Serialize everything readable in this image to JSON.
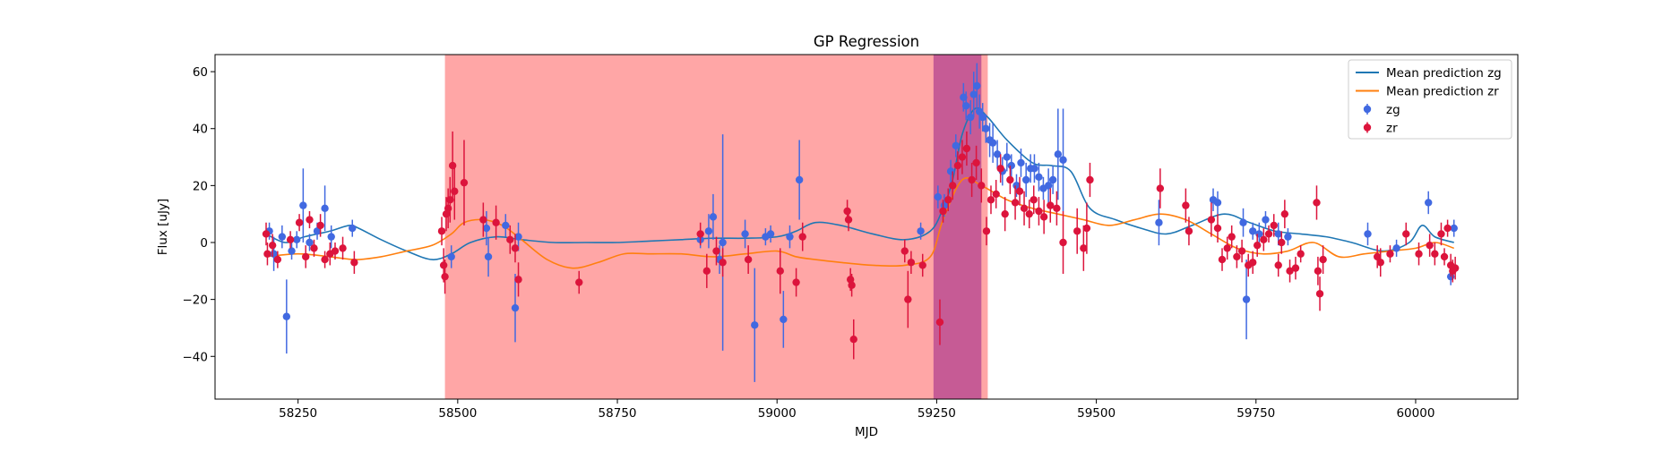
{
  "chart_data": {
    "type": "scatter",
    "title": "GP Regression",
    "xlabel": "MJD",
    "ylabel": "Flux [uJy]",
    "xlim": [
      58120,
      60160
    ],
    "ylim": [
      -55,
      66
    ],
    "xticks": [
      58250,
      58500,
      58750,
      59000,
      59250,
      59500,
      59750,
      60000
    ],
    "yticks": [
      -40,
      -20,
      0,
      20,
      40,
      60
    ],
    "grid": false,
    "legend_position": "top-right",
    "legend": [
      "Mean prediction zg",
      "Mean prediction zr",
      "zg",
      "zr"
    ],
    "colors": {
      "zg_points": "#4169e1",
      "zr_points": "#dc143c",
      "zg_line": "#1f77b4",
      "zr_line": "#ff7f0e",
      "span_red": "#ff0000",
      "span_purple": "#800080"
    },
    "spans": [
      {
        "x0": 58480,
        "x1": 59330,
        "color": "#ff0000",
        "alpha": 0.35
      },
      {
        "x0": 59245,
        "x1": 59320,
        "color": "#800080",
        "alpha": 0.45
      }
    ],
    "series": [
      {
        "name": "Mean prediction zg",
        "kind": "line",
        "color": "#1f77b4",
        "x": [
          58200,
          58230,
          58260,
          58300,
          58330,
          58345,
          58380,
          58420,
          58460,
          58490,
          58520,
          58560,
          58600,
          58650,
          58700,
          58750,
          58800,
          58850,
          58900,
          58950,
          59000,
          59030,
          59060,
          59100,
          59150,
          59200,
          59240,
          59260,
          59275,
          59290,
          59310,
          59330,
          59360,
          59400,
          59430,
          59460,
          59490,
          59530,
          59570,
          59610,
          59650,
          59700,
          59740,
          59780,
          59820,
          59860,
          59900,
          59950,
          59990,
          60010,
          60030,
          60060
        ],
        "y": [
          3,
          0,
          2,
          4,
          6,
          5,
          1,
          -3,
          -6,
          -4,
          0,
          2,
          1,
          0,
          0,
          0,
          0.5,
          1,
          1.5,
          1.5,
          2,
          4,
          7,
          6,
          3,
          1,
          4,
          12,
          22,
          38,
          47,
          44,
          36,
          28,
          27,
          25,
          12,
          8,
          5,
          3,
          6,
          10,
          7,
          4,
          3,
          2,
          0,
          -3,
          0,
          6,
          2,
          0
        ]
      },
      {
        "name": "Mean prediction zr",
        "kind": "line",
        "color": "#ff7f0e",
        "x": [
          58200,
          58250,
          58300,
          58340,
          58380,
          58420,
          58460,
          58490,
          58510,
          58540,
          58570,
          58600,
          58640,
          58680,
          58720,
          58760,
          58800,
          58850,
          58900,
          58950,
          59000,
          59030,
          59060,
          59100,
          59150,
          59200,
          59240,
          59260,
          59290,
          59320,
          59360,
          59400,
          59440,
          59480,
          59520,
          59560,
          59600,
          59640,
          59680,
          59720,
          59760,
          59800,
          59840,
          59880,
          59920,
          59960,
          60000,
          60030,
          60060
        ],
        "y": [
          -5,
          -4,
          -5,
          -6,
          -5,
          -3,
          -1,
          3,
          7,
          8,
          6,
          1,
          -6,
          -9,
          -7,
          -4,
          -4,
          -4,
          -5,
          -4,
          -3,
          -5,
          -6,
          -7,
          -8,
          -8,
          -5,
          8,
          22,
          20,
          15,
          12,
          10,
          8,
          6,
          8,
          10,
          8,
          3,
          -2,
          -4,
          -3,
          0,
          -5,
          -4,
          -3,
          -2,
          0,
          -2
        ]
      },
      {
        "name": "zg",
        "kind": "errorbar",
        "color": "#4169e1",
        "points": [
          [
            58205,
            4,
            3
          ],
          [
            58212,
            -4,
            6
          ],
          [
            58225,
            2,
            4
          ],
          [
            58232,
            -26,
            13
          ],
          [
            58240,
            -3,
            3
          ],
          [
            58248,
            1,
            3
          ],
          [
            58258,
            13,
            13
          ],
          [
            58268,
            0,
            3
          ],
          [
            58280,
            4,
            3
          ],
          [
            58292,
            12,
            8
          ],
          [
            58302,
            2,
            4
          ],
          [
            58335,
            5,
            3
          ],
          [
            58490,
            -5,
            4
          ],
          [
            58545,
            5,
            6
          ],
          [
            58548,
            -5,
            7
          ],
          [
            58575,
            6,
            4
          ],
          [
            58590,
            -23,
            12
          ],
          [
            58595,
            2,
            5
          ],
          [
            58880,
            1,
            3
          ],
          [
            58893,
            4,
            6
          ],
          [
            58900,
            9,
            8
          ],
          [
            58910,
            -6,
            5
          ],
          [
            58915,
            0,
            38
          ],
          [
            58950,
            3,
            5
          ],
          [
            58965,
            -29,
            20
          ],
          [
            58982,
            2,
            3
          ],
          [
            58990,
            3,
            3
          ],
          [
            59010,
            -27,
            10
          ],
          [
            59020,
            2,
            4
          ],
          [
            59035,
            22,
            14
          ],
          [
            59225,
            4,
            3
          ],
          [
            59252,
            16,
            4
          ],
          [
            59262,
            13,
            4
          ],
          [
            59272,
            25,
            4
          ],
          [
            59280,
            34,
            4
          ],
          [
            59292,
            51,
            5
          ],
          [
            59296,
            48,
            5
          ],
          [
            59303,
            44,
            6
          ],
          [
            59308,
            52,
            8
          ],
          [
            59313,
            55,
            8
          ],
          [
            59317,
            46,
            6
          ],
          [
            59322,
            44,
            5
          ],
          [
            59327,
            40,
            5
          ],
          [
            59333,
            36,
            6
          ],
          [
            59338,
            35,
            7
          ],
          [
            59345,
            31,
            5
          ],
          [
            59353,
            25,
            5
          ],
          [
            59360,
            30,
            5
          ],
          [
            59367,
            27,
            4
          ],
          [
            59375,
            20,
            4
          ],
          [
            59382,
            28,
            5
          ],
          [
            59390,
            22,
            6
          ],
          [
            59397,
            26,
            5
          ],
          [
            59403,
            26,
            5
          ],
          [
            59410,
            23,
            5
          ],
          [
            59417,
            19,
            4
          ],
          [
            59425,
            20,
            6
          ],
          [
            59432,
            22,
            5
          ],
          [
            59440,
            31,
            16
          ],
          [
            59448,
            29,
            18
          ],
          [
            59598,
            7,
            8
          ],
          [
            59683,
            15,
            4
          ],
          [
            59690,
            14,
            4
          ],
          [
            59730,
            7,
            5
          ],
          [
            59735,
            -20,
            14
          ],
          [
            59745,
            4,
            3
          ],
          [
            59755,
            3,
            4
          ],
          [
            59765,
            8,
            3
          ],
          [
            59785,
            3,
            4
          ],
          [
            59800,
            2,
            3
          ],
          [
            59925,
            3,
            4
          ],
          [
            59970,
            -2,
            3
          ],
          [
            60020,
            14,
            4
          ],
          [
            60055,
            -12,
            3
          ],
          [
            60060,
            5,
            3
          ]
        ]
      },
      {
        "name": "zr",
        "kind": "errorbar",
        "color": "#dc143c",
        "points": [
          [
            58200,
            3,
            4
          ],
          [
            58202,
            -4,
            4
          ],
          [
            58210,
            -1,
            4
          ],
          [
            58218,
            -6,
            3
          ],
          [
            58238,
            1,
            3
          ],
          [
            58252,
            7,
            3
          ],
          [
            58262,
            -5,
            4
          ],
          [
            58268,
            8,
            3
          ],
          [
            58275,
            -2,
            3
          ],
          [
            58285,
            6,
            4
          ],
          [
            58292,
            -6,
            3
          ],
          [
            58300,
            -4,
            4
          ],
          [
            58308,
            -3,
            3
          ],
          [
            58320,
            -2,
            4
          ],
          [
            58338,
            -7,
            4
          ],
          [
            58475,
            4,
            5
          ],
          [
            58478,
            -8,
            6
          ],
          [
            58480,
            -12,
            6
          ],
          [
            58482,
            10,
            6
          ],
          [
            58485,
            12,
            7
          ],
          [
            58488,
            15,
            8
          ],
          [
            58492,
            27,
            12
          ],
          [
            58495,
            18,
            10
          ],
          [
            58510,
            21,
            15
          ],
          [
            58540,
            8,
            6
          ],
          [
            58560,
            7,
            6
          ],
          [
            58582,
            1,
            5
          ],
          [
            58590,
            -2,
            5
          ],
          [
            58595,
            -13,
            6
          ],
          [
            58690,
            -14,
            4
          ],
          [
            58880,
            3,
            4
          ],
          [
            58890,
            -10,
            6
          ],
          [
            58905,
            -3,
            5
          ],
          [
            58915,
            -7,
            5
          ],
          [
            58955,
            -6,
            5
          ],
          [
            59005,
            -10,
            8
          ],
          [
            59030,
            -14,
            5
          ],
          [
            59040,
            2,
            5
          ],
          [
            59110,
            11,
            4
          ],
          [
            59112,
            8,
            4
          ],
          [
            59115,
            -13,
            4
          ],
          [
            59117,
            -15,
            4
          ],
          [
            59120,
            -34,
            7
          ],
          [
            59200,
            -3,
            4
          ],
          [
            59205,
            -20,
            10
          ],
          [
            59210,
            -7,
            4
          ],
          [
            59228,
            -8,
            4
          ],
          [
            59255,
            -28,
            8
          ],
          [
            59260,
            11,
            4
          ],
          [
            59268,
            15,
            4
          ],
          [
            59275,
            20,
            5
          ],
          [
            59283,
            27,
            5
          ],
          [
            59290,
            30,
            6
          ],
          [
            59297,
            33,
            6
          ],
          [
            59305,
            22,
            6
          ],
          [
            59312,
            28,
            6
          ],
          [
            59320,
            20,
            6
          ],
          [
            59328,
            4,
            5
          ],
          [
            59335,
            15,
            5
          ],
          [
            59343,
            17,
            5
          ],
          [
            59350,
            26,
            5
          ],
          [
            59357,
            10,
            6
          ],
          [
            59365,
            22,
            5
          ],
          [
            59373,
            14,
            6
          ],
          [
            59380,
            18,
            5
          ],
          [
            59387,
            12,
            6
          ],
          [
            59395,
            10,
            5
          ],
          [
            59402,
            15,
            5
          ],
          [
            59410,
            11,
            5
          ],
          [
            59418,
            9,
            6
          ],
          [
            59428,
            13,
            6
          ],
          [
            59438,
            12,
            6
          ],
          [
            59448,
            0,
            11
          ],
          [
            59470,
            4,
            8
          ],
          [
            59480,
            -2,
            8
          ],
          [
            59485,
            5,
            9
          ],
          [
            59490,
            22,
            6
          ],
          [
            59600,
            19,
            7
          ],
          [
            59640,
            13,
            6
          ],
          [
            59645,
            4,
            5
          ],
          [
            59680,
            8,
            6
          ],
          [
            59690,
            5,
            5
          ],
          [
            59697,
            -6,
            4
          ],
          [
            59705,
            -2,
            4
          ],
          [
            59712,
            2,
            4
          ],
          [
            59720,
            -5,
            4
          ],
          [
            59728,
            -3,
            4
          ],
          [
            59738,
            -8,
            4
          ],
          [
            59745,
            -7,
            4
          ],
          [
            59752,
            -1,
            4
          ],
          [
            59762,
            1,
            4
          ],
          [
            59770,
            3,
            3
          ],
          [
            59778,
            6,
            4
          ],
          [
            59785,
            -8,
            4
          ],
          [
            59790,
            0,
            4
          ],
          [
            59795,
            10,
            5
          ],
          [
            59803,
            -10,
            4
          ],
          [
            59812,
            -9,
            4
          ],
          [
            59820,
            -4,
            3
          ],
          [
            59845,
            14,
            6
          ],
          [
            59847,
            -10,
            5
          ],
          [
            59850,
            -18,
            6
          ],
          [
            59855,
            -6,
            5
          ],
          [
            59940,
            -5,
            4
          ],
          [
            59945,
            -7,
            5
          ],
          [
            59960,
            -4,
            3
          ],
          [
            59985,
            3,
            4
          ],
          [
            60005,
            -4,
            4
          ],
          [
            60022,
            -1,
            4
          ],
          [
            60030,
            -4,
            4
          ],
          [
            60040,
            3,
            4
          ],
          [
            60045,
            -5,
            3
          ],
          [
            60050,
            5,
            3
          ],
          [
            60055,
            -8,
            4
          ],
          [
            60058,
            -10,
            4
          ],
          [
            60062,
            -9,
            4
          ]
        ]
      }
    ]
  }
}
